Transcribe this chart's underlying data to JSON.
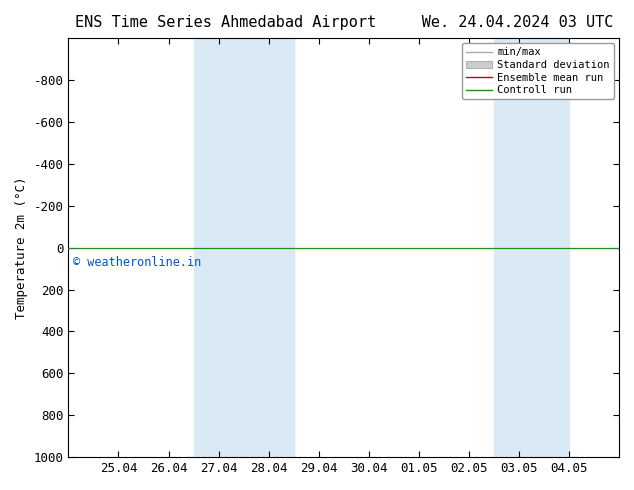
{
  "title_left": "ENS Time Series Ahmedabad Airport",
  "title_right": "We. 24.04.2024 03 UTC",
  "ylabel": "Temperature 2m (°C)",
  "yticks": [
    -800,
    -600,
    -400,
    -200,
    0,
    200,
    400,
    600,
    800,
    1000
  ],
  "x_tick_labels": [
    "25.04",
    "26.04",
    "27.04",
    "28.04",
    "29.04",
    "30.04",
    "01.05",
    "02.05",
    "03.05",
    "04.05"
  ],
  "x_tick_positions": [
    1,
    2,
    3,
    4,
    5,
    6,
    7,
    8,
    9,
    10
  ],
  "xlim": [
    0.0,
    11.0
  ],
  "ylim_bottom": 1000,
  "ylim_top": -1000,
  "shaded_bands": [
    {
      "xstart": 2.5,
      "xend": 4.5,
      "color": "#daeaf5"
    },
    {
      "xstart": 8.5,
      "xend": 10.0,
      "color": "#daeaf5"
    }
  ],
  "control_run_y": 0,
  "ensemble_mean_y": 0,
  "control_run_color": "#228b22",
  "ensemble_mean_color": "#cc0000",
  "copyright_text": "© weatheronline.in",
  "copyright_color": "#0055cc",
  "legend_labels": [
    "min/max",
    "Standard deviation",
    "Ensemble mean run",
    "Controll run"
  ],
  "background_color": "#ffffff",
  "plot_bg_color": "#ffffff",
  "spine_color": "#000000",
  "title_fontsize": 11,
  "axis_fontsize": 9,
  "tick_fontsize": 9
}
